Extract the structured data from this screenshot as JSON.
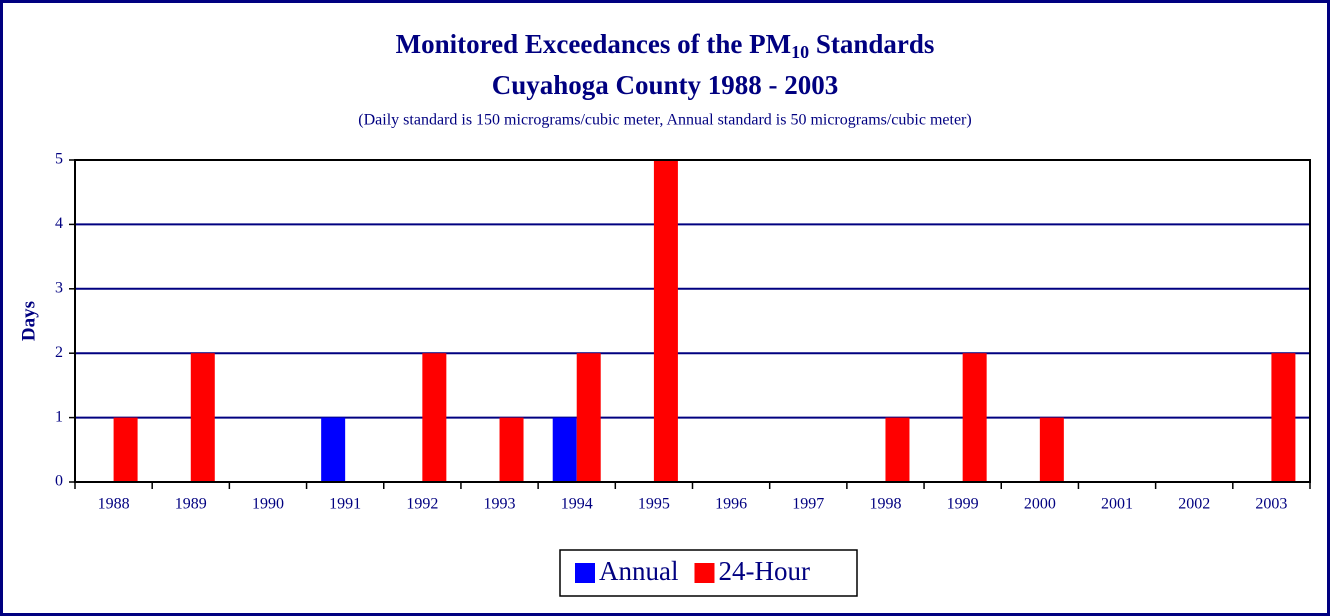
{
  "chart_data": {
    "type": "bar",
    "title": [
      "Monitored Exceedances of the PM",
      "10",
      " Standards"
    ],
    "subtitle": "Cuyahoga County 1988 - 2003",
    "note": "(Daily standard is 150 micrograms/cubic meter, Annual standard is 50 micrograms/cubic meter)",
    "y_label": "Days",
    "categories": [
      "1988",
      "1989",
      "1990",
      "1991",
      "1992",
      "1993",
      "1994",
      "1995",
      "1996",
      "1997",
      "1998",
      "1999",
      "2000",
      "2001",
      "2002",
      "2003"
    ],
    "series": [
      {
        "name": "Annual",
        "color": "#0000ff",
        "values": [
          0,
          0,
          0,
          1,
          0,
          0,
          1,
          0,
          0,
          0,
          0,
          0,
          0,
          0,
          0,
          0
        ]
      },
      {
        "name": "24-Hour",
        "color": "#ff0000",
        "values": [
          1,
          2,
          0,
          0,
          2,
          1,
          2,
          5,
          0,
          0,
          1,
          2,
          1,
          0,
          0,
          2
        ]
      }
    ],
    "ylim": [
      0,
      5
    ],
    "yticks": [
      0,
      1,
      2,
      3,
      4,
      5
    ],
    "grid": true,
    "legend": "bottom"
  }
}
